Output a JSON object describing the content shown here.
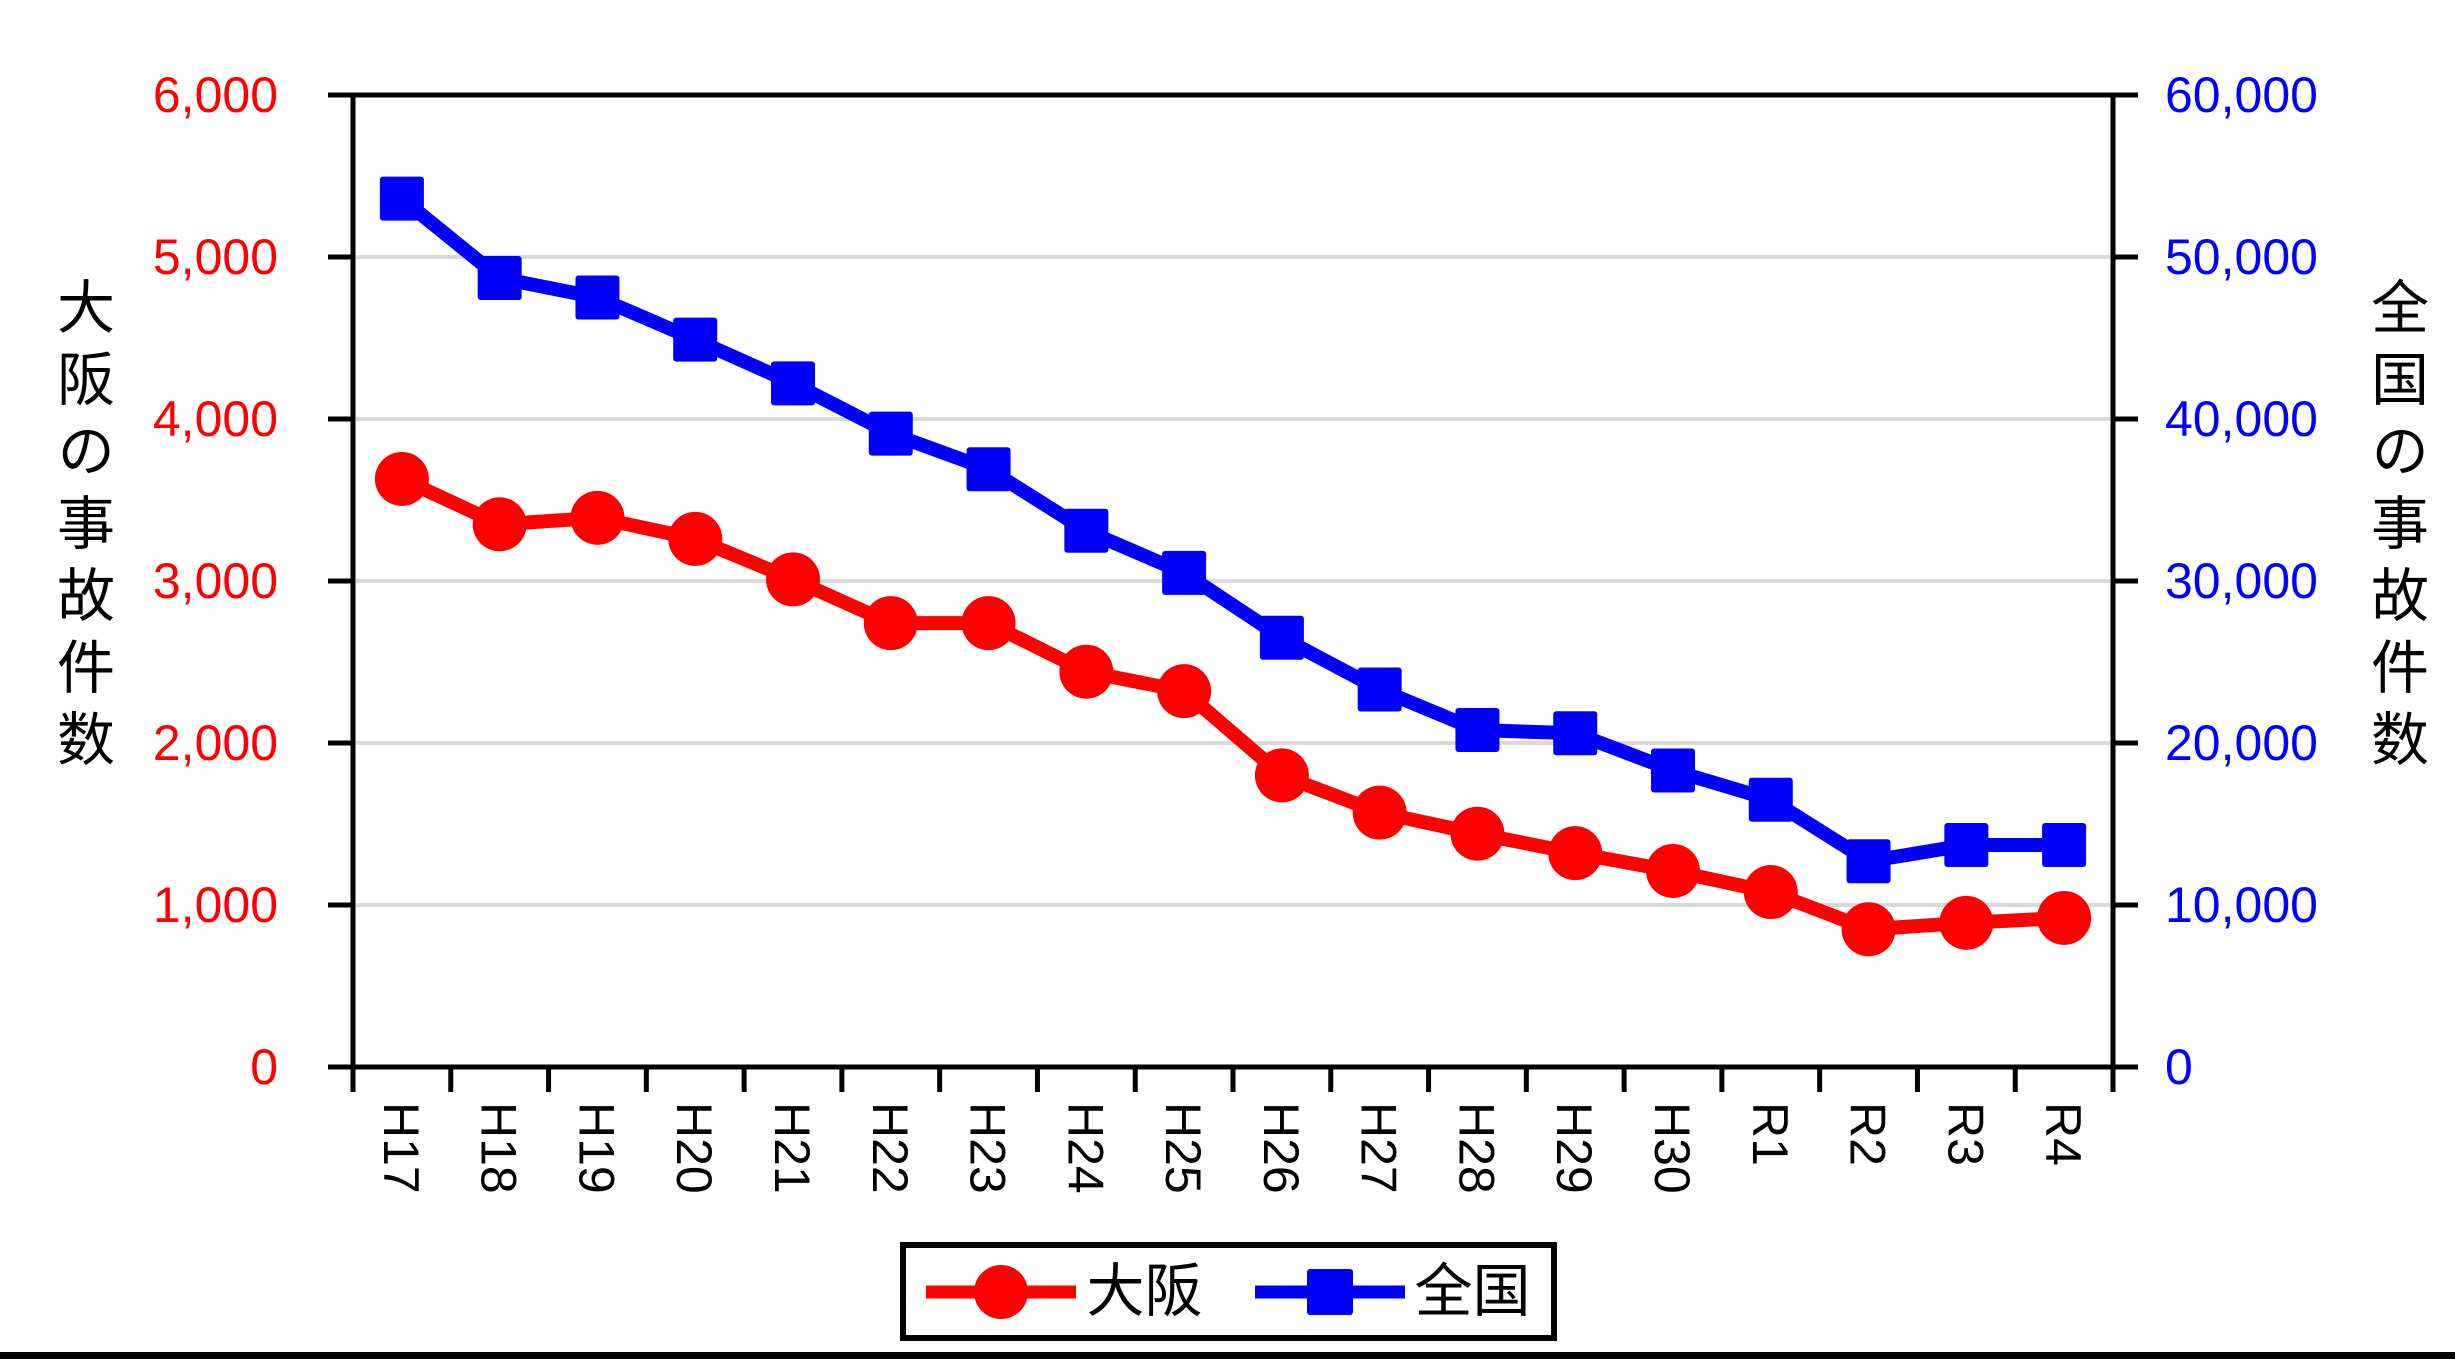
{
  "chart_data": {
    "type": "line",
    "categories": [
      "H17",
      "H18",
      "H19",
      "H20",
      "H21",
      "H22",
      "H23",
      "H24",
      "H25",
      "H26",
      "H27",
      "H28",
      "H29",
      "H30",
      "R1",
      "R2",
      "R3",
      "R4"
    ],
    "series": [
      {
        "id": "osaka",
        "name": "大阪",
        "axis": "left",
        "color": "#ff0000",
        "marker": "circle",
        "values": [
          3630,
          3350,
          3390,
          3260,
          3010,
          2740,
          2740,
          2440,
          2320,
          1800,
          1570,
          1440,
          1320,
          1210,
          1080,
          850,
          890,
          920
        ]
      },
      {
        "id": "national",
        "name": "全国",
        "axis": "right",
        "color": "#0000ff",
        "marker": "square",
        "values": [
          53600,
          48700,
          47500,
          44900,
          42200,
          39100,
          36900,
          33100,
          30500,
          26500,
          23300,
          20800,
          20600,
          18300,
          16500,
          12700,
          13700,
          13700
        ]
      }
    ],
    "left_axis": {
      "title": "大阪の事故件数",
      "min": 0,
      "max": 6000,
      "step": 1000,
      "color": "#ff0000",
      "tick_labels": [
        "0",
        "1,000",
        "2,000",
        "3,000",
        "4,000",
        "5,000",
        "6,000"
      ]
    },
    "right_axis": {
      "title": "全国の事故件数",
      "min": 0,
      "max": 60000,
      "step": 10000,
      "color": "#0000ff",
      "tick_labels": [
        "0",
        "10,000",
        "20,000",
        "30,000",
        "40,000",
        "50,000",
        "60,000"
      ]
    },
    "x_axis": {
      "label_color": "#000000",
      "label_rotation_deg": 90
    },
    "grid": "horizontal",
    "grid_color": "#d9d9d9",
    "frame_color": "#000000",
    "legend_position": "bottom"
  }
}
